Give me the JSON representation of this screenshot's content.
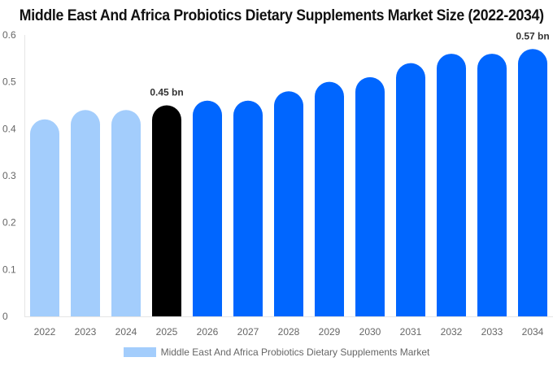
{
  "chart_data": {
    "type": "bar",
    "title": "Middle East And Africa Probiotics Dietary Supplements Market Size (2022-2034)",
    "categories": [
      "2022",
      "2023",
      "2024",
      "2025",
      "2026",
      "2027",
      "2028",
      "2029",
      "2030",
      "2031",
      "2032",
      "2033",
      "2034"
    ],
    "series": [
      {
        "name": "Middle East And Africa Probiotics Dietary Supplements Market",
        "values": [
          0.42,
          0.44,
          0.44,
          0.45,
          0.46,
          0.46,
          0.48,
          0.5,
          0.51,
          0.54,
          0.56,
          0.56,
          0.57
        ]
      }
    ],
    "data_labels": {
      "2025": "0.45 bn",
      "2034": "0.57 bn"
    },
    "yticks": [
      "0",
      "0.1",
      "0.2",
      "0.3",
      "0.4",
      "0.5",
      "0.6"
    ],
    "ylim": [
      0,
      0.6
    ],
    "xlabel": "",
    "ylabel": "",
    "grid": false,
    "legend_position": "bottom",
    "colors": {
      "historical": "#a3cdfc",
      "current": "#000000",
      "forecast": "#0066ff"
    },
    "historical_years": [
      "2022",
      "2023",
      "2024"
    ],
    "current_year": "2025"
  }
}
